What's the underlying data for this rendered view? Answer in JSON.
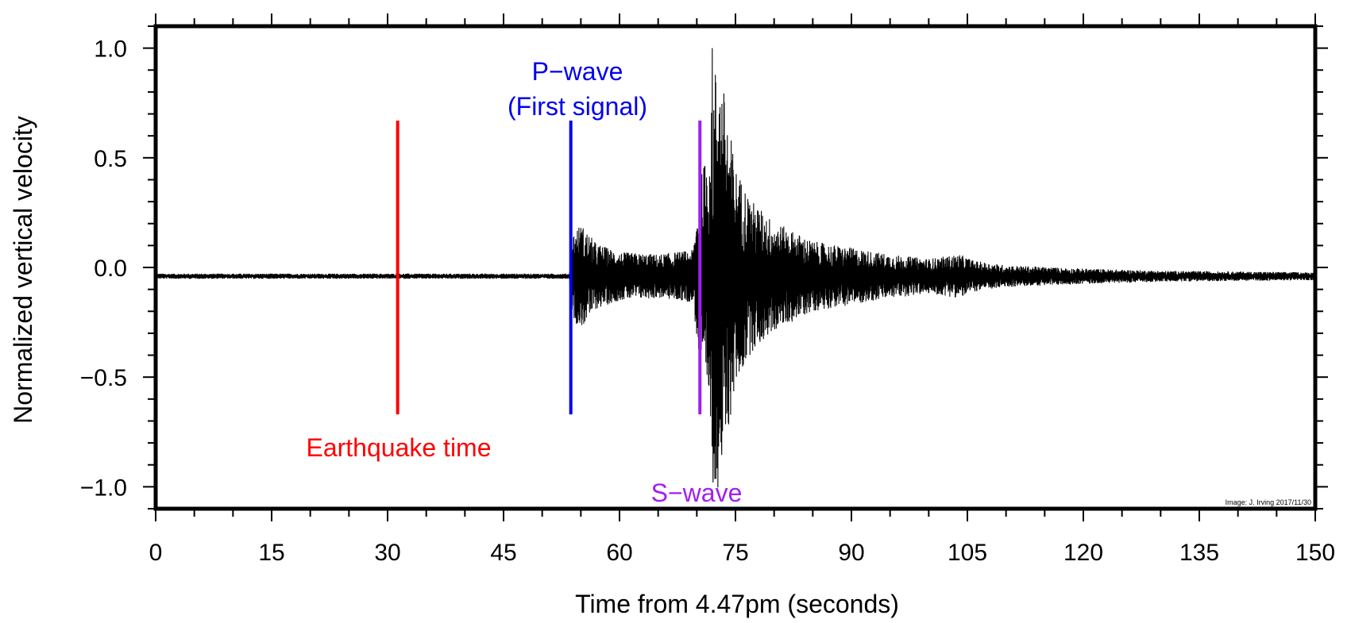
{
  "chart_data": {
    "type": "line",
    "title": "",
    "xlabel": "Time from 4.47pm (seconds)",
    "ylabel": "Normalized vertical velocity",
    "xlim": [
      0,
      150
    ],
    "ylim": [
      -1.1,
      1.1
    ],
    "x_ticks": [
      0,
      15,
      30,
      45,
      60,
      75,
      90,
      105,
      120,
      135,
      150
    ],
    "x_tick_labels": [
      "0",
      "15",
      "30",
      "45",
      "60",
      "75",
      "90",
      "105",
      "120",
      "135",
      "150"
    ],
    "y_ticks": [
      1.0,
      0.5,
      0.0,
      -0.5,
      -1.0
    ],
    "y_tick_labels": [
      "1.0",
      "0.5",
      "0.0",
      "−0.5",
      "−1.0"
    ],
    "grid": false,
    "series": [
      {
        "color": "#000000",
        "baseline": -0.04,
        "envelope": {
          "x": [
            0,
            53.5,
            54.0,
            55.0,
            57.0,
            60.0,
            65.0,
            69.5,
            70.5,
            71.5,
            72.5,
            73.5,
            75.0,
            77.0,
            80.0,
            85.0,
            90.0,
            95.0,
            100.0,
            104.0,
            106.0,
            110.0,
            120.0,
            130.0,
            150.0
          ],
          "amplitude": [
            0.012,
            0.012,
            0.2,
            0.24,
            0.15,
            0.11,
            0.1,
            0.12,
            0.45,
            0.6,
            1.0,
            0.85,
            0.5,
            0.35,
            0.25,
            0.16,
            0.13,
            0.1,
            0.08,
            0.1,
            0.07,
            0.05,
            0.035,
            0.025,
            0.018
          ]
        },
        "peaks": [
          {
            "x": 72.0,
            "y": 1.0
          },
          {
            "x": 72.1,
            "y": -0.98
          },
          {
            "x": 73.2,
            "y": -0.8
          },
          {
            "x": 72.9,
            "y": 0.7
          }
        ]
      }
    ],
    "markers": [
      {
        "label": "Earthquake time",
        "x": 31.3,
        "y_range": [
          -0.67,
          0.67
        ],
        "color": "#ff0000"
      },
      {
        "label": "P−wave\n(First signal)",
        "x": 53.7,
        "y_range": [
          -0.67,
          0.67
        ],
        "color": "#0000ee"
      },
      {
        "label": "S−wave",
        "x": 70.4,
        "y_range": [
          -0.67,
          0.67
        ],
        "color": "#a020f0"
      }
    ],
    "credit": "Image: J. Irving 2017/11/30"
  }
}
